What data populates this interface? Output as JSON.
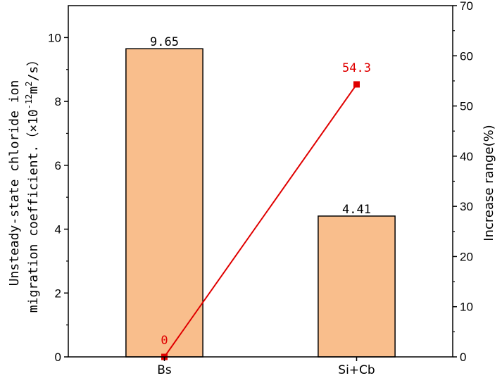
{
  "chart_data": {
    "type": "bar+line",
    "categories": [
      "Bs",
      "Si+Cb"
    ],
    "bars": {
      "values": [
        9.65,
        4.41
      ],
      "labels": [
        "9.65",
        "4.41"
      ],
      "color": "#f9be8c",
      "edge_color": "#000000"
    },
    "line": {
      "values": [
        0,
        54.3
      ],
      "labels": [
        "0",
        "54.3"
      ],
      "color": "#e00000"
    },
    "ylabel_left_line1": "Unsteady-state chloride ion",
    "ylabel_left_line2_prefix": "migration coefficient.（×10",
    "ylabel_left_exp": "-12",
    "ylabel_left_mid": "m",
    "ylabel_left_exp2": "2",
    "ylabel_left_suffix": "/s）",
    "ylabel_right": "Increase range(%)",
    "ylim_left": [
      0,
      11
    ],
    "yticks_left": [
      0,
      2,
      4,
      6,
      8,
      10
    ],
    "ylim_right": [
      0,
      70
    ],
    "yticks_right": [
      0,
      10,
      20,
      30,
      40,
      50,
      60,
      70
    ]
  }
}
